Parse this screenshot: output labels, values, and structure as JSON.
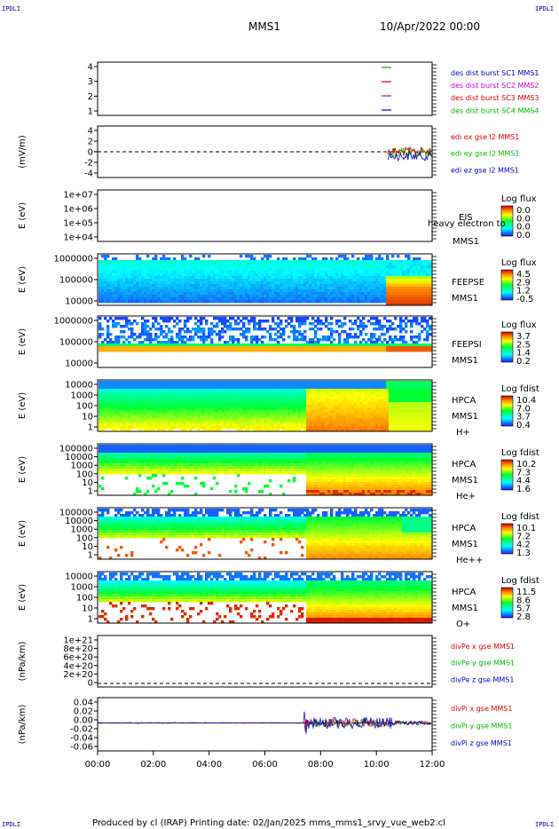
{
  "header": {
    "spacecraft": "MMS1",
    "datetime": "10/Apr/2022 00:00"
  },
  "corners": {
    "top_left": "IPDLI",
    "top_right": "IPDLI",
    "bottom_left": "IPDLI",
    "bottom_right": "IPDLI"
  },
  "footer": {
    "text": "Produced by cl (IRAP)   Printing date: 02/Jan/2025   mms_mms1_srvy_vue_web2.cl"
  },
  "colors": {
    "c1": "#0000cc",
    "c2": "#cc00cc",
    "c3": "#dd0000",
    "c4": "#00bb00"
  },
  "chart_data": {
    "type": "multi-panel time series",
    "time_range": [
      "00:00",
      "12:00"
    ],
    "x_ticks": [
      "00:00",
      "02:00",
      "04:00",
      "06:00",
      "08:00",
      "10:00",
      "12:00"
    ],
    "panels": [
      {
        "id": "burst",
        "type": "line",
        "ylabel": "",
        "y_ticks": [
          "4",
          "3",
          "2",
          "1"
        ],
        "legend": [
          {
            "label": "des dist burst SC1 MMS1",
            "color": "#0000cc"
          },
          {
            "label": "des dist burst SC2 MMS2",
            "color": "#cc00cc"
          },
          {
            "label": "des dist burst SC3 MMS3",
            "color": "#dd0000"
          },
          {
            "label": "des dist burst SC4 MMS4",
            "color": "#00bb00"
          }
        ]
      },
      {
        "id": "edi",
        "type": "line",
        "ylabel": "(mV/m)",
        "y_ticks": [
          "4",
          "2",
          "0",
          "-2",
          "-4"
        ],
        "ylim": [
          -5,
          5
        ],
        "legend": [
          {
            "label": "edi ex gse l2 MMS1",
            "color": "#dd0000"
          },
          {
            "label": "edi ey gse l2 MMS1",
            "color": "#00bb00"
          },
          {
            "label": "edi ez gse l2 MMS1",
            "color": "#0000cc"
          }
        ]
      },
      {
        "id": "eis",
        "type": "heatmap",
        "ylabel": "E (eV)",
        "y_ticks": [
          "1e+07",
          "1e+06",
          "1e+05",
          "1e+04"
        ],
        "side": [
          "EIS",
          "heavy electron to",
          "MMS1"
        ],
        "cbar_title": "Log flux",
        "cbar_values": [
          "0.0",
          "0.0",
          "0.0",
          "0.0"
        ]
      },
      {
        "id": "feepse",
        "type": "heatmap",
        "ylabel": "E (eV)",
        "y_ticks": [
          "1000000",
          "100000",
          "10000"
        ],
        "side": [
          "FEEPSE",
          "MMS1"
        ],
        "cbar_title": "Log flux",
        "cbar_values": [
          "4.5",
          "2.9",
          "1.2",
          "-0.5"
        ]
      },
      {
        "id": "feepsi",
        "type": "heatmap",
        "ylabel": "E (eV)",
        "y_ticks": [
          "1000000",
          "100000",
          "10000"
        ],
        "side": [
          "FEEPSI",
          "MMS1"
        ],
        "cbar_title": "Log flux",
        "cbar_values": [
          "3.7",
          "2.5",
          "1.4",
          "0.2"
        ]
      },
      {
        "id": "hpca_h",
        "type": "heatmap",
        "ylabel": "E (eV)",
        "y_ticks": [
          "10000",
          "1000",
          "100",
          "10",
          "1"
        ],
        "side": [
          "HPCA",
          "MMS1",
          "H+"
        ],
        "cbar_title": "Log fdist",
        "cbar_values": [
          "10.4",
          "7.0",
          "3.7",
          "0.4"
        ]
      },
      {
        "id": "hpca_he",
        "type": "heatmap",
        "ylabel": "E (eV)",
        "y_ticks": [
          "100000",
          "10000",
          "1000",
          "100",
          "10",
          "1"
        ],
        "side": [
          "HPCA",
          "MMS1",
          "He+"
        ],
        "cbar_title": "Log fdist",
        "cbar_values": [
          "10.2",
          "7.3",
          "4.4",
          "1.6"
        ]
      },
      {
        "id": "hpca_hepp",
        "type": "heatmap",
        "ylabel": "E (eV)",
        "y_ticks": [
          "100000",
          "10000",
          "1000",
          "100",
          "10",
          "1"
        ],
        "side": [
          "HPCA",
          "MMS1",
          "He++"
        ],
        "cbar_title": "Log fdist",
        "cbar_values": [
          "10.1",
          "7.2",
          "4.2",
          "1.3"
        ]
      },
      {
        "id": "hpca_o",
        "type": "heatmap",
        "ylabel": "E (eV)",
        "y_ticks": [
          "10000",
          "1000",
          "100",
          "10",
          "1"
        ],
        "side": [
          "HPCA",
          "MMS1",
          "O+"
        ],
        "cbar_title": "Log fdist",
        "cbar_values": [
          "11.5",
          "8.6",
          "5.7",
          "2.8"
        ]
      },
      {
        "id": "divpe",
        "type": "line",
        "ylabel": "(nPa/km)",
        "y_ticks": [
          "1e+21",
          "8e+20",
          "6e+20",
          "4e+20",
          "2e+20",
          "0"
        ],
        "legend": [
          {
            "label": "divPe x gse MMS1",
            "color": "#dd0000"
          },
          {
            "label": "divPe y gse MMS1",
            "color": "#00bb00"
          },
          {
            "label": "divPe z gse MMS1",
            "color": "#0000cc"
          }
        ]
      },
      {
        "id": "divpi",
        "type": "line",
        "ylabel": "(nPa/km)",
        "y_ticks": [
          "0.04",
          "0.02",
          "0.00",
          "-0.02",
          "-0.04",
          "-0.06"
        ],
        "ylim": [
          -0.065,
          0.045
        ],
        "legend": [
          {
            "label": "divPi x gse MMS1",
            "color": "#dd0000"
          },
          {
            "label": "divPi y gse MMS1",
            "color": "#00bb00"
          },
          {
            "label": "divPi z gse MMS1",
            "color": "#0000cc"
          }
        ]
      }
    ]
  }
}
